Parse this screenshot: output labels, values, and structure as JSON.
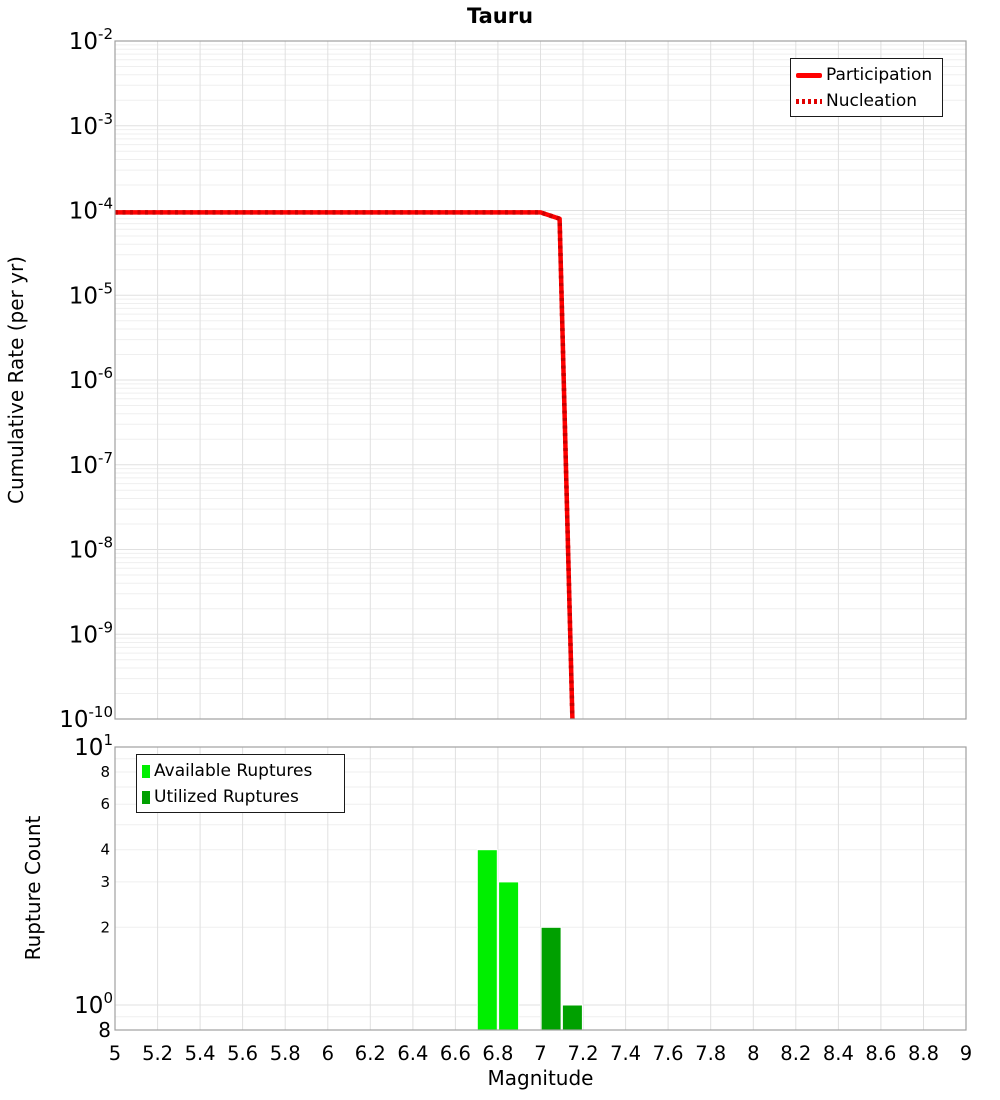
{
  "title": "Tauru",
  "colors": {
    "participation": "#ff0000",
    "nucleation": "#cc0000",
    "available": "#00ef00",
    "utilized": "#00a000",
    "grid_major": "#e0e0e0",
    "grid_minor": "#efefef",
    "plot_border": "#a0a0a0",
    "text": "#000000"
  },
  "chart_data": [
    {
      "type": "line",
      "title": "Tauru",
      "xlabel": "",
      "ylabel": "Cumulative Rate (per yr)",
      "xscale": "linear",
      "yscale": "log",
      "xlim": [
        5,
        9
      ],
      "ylim": [
        1e-10,
        0.01
      ],
      "grid": true,
      "legend_position": "top-right",
      "series": [
        {
          "name": "Participation",
          "style": "solid",
          "color": "#ff0000",
          "points": [
            [
              5.0,
              9.5e-05
            ],
            [
              7.0,
              9.5e-05
            ],
            [
              7.09,
              8e-05
            ],
            [
              7.15,
              1e-10
            ]
          ]
        },
        {
          "name": "Nucleation",
          "style": "dotted",
          "color": "#cc0000",
          "points": [
            [
              5.0,
              9.5e-05
            ],
            [
              7.0,
              9.5e-05
            ],
            [
              7.09,
              8e-05
            ],
            [
              7.15,
              1e-10
            ]
          ]
        }
      ],
      "yticks": [
        {
          "v": 0.01,
          "exp": "-2"
        },
        {
          "v": 0.001,
          "exp": "-3"
        },
        {
          "v": 0.0001,
          "exp": "-4"
        },
        {
          "v": 1e-05,
          "exp": "-5"
        },
        {
          "v": 1e-06,
          "exp": "-6"
        },
        {
          "v": 1e-07,
          "exp": "-7"
        },
        {
          "v": 1e-08,
          "exp": "-8"
        },
        {
          "v": 1e-09,
          "exp": "-9"
        },
        {
          "v": 1e-10,
          "exp": "-10"
        }
      ]
    },
    {
      "type": "bar",
      "title": "",
      "xlabel": "Magnitude",
      "ylabel": "Rupture Count",
      "xscale": "linear",
      "yscale": "log",
      "xlim": [
        5,
        9
      ],
      "ylim": [
        0.8,
        10
      ],
      "grid": true,
      "legend_position": "top-left",
      "bar_width": 0.094,
      "series": [
        {
          "name": "Available Ruptures",
          "color": "#00ef00",
          "bars": [
            {
              "x": 6.75,
              "count": 4
            },
            {
              "x": 6.85,
              "count": 3
            }
          ]
        },
        {
          "name": "Utilized Ruptures",
          "color": "#00a000",
          "bars": [
            {
              "x": 7.05,
              "count": 2
            },
            {
              "x": 7.15,
              "count": 1
            }
          ]
        }
      ],
      "yticks_major": [
        {
          "v": 10,
          "exp": "1"
        },
        {
          "v": 1,
          "exp": "0"
        }
      ],
      "yticks_minor": [
        {
          "v": 8,
          "label": "8"
        },
        {
          "v": 6,
          "label": "6"
        },
        {
          "v": 4,
          "label": "4"
        },
        {
          "v": 3,
          "label": "3"
        },
        {
          "v": 2,
          "label": "2"
        }
      ],
      "ytick_edge": {
        "v": 0.8,
        "label": "8"
      },
      "xticks": [
        {
          "v": 5,
          "label": "5"
        },
        {
          "v": 5.2,
          "label": "5.2"
        },
        {
          "v": 5.4,
          "label": "5.4"
        },
        {
          "v": 5.6,
          "label": "5.6"
        },
        {
          "v": 5.8,
          "label": "5.8"
        },
        {
          "v": 6,
          "label": "6"
        },
        {
          "v": 6.2,
          "label": "6.2"
        },
        {
          "v": 6.4,
          "label": "6.4"
        },
        {
          "v": 6.6,
          "label": "6.6"
        },
        {
          "v": 6.8,
          "label": "6.8"
        },
        {
          "v": 7,
          "label": "7"
        },
        {
          "v": 7.2,
          "label": "7.2"
        },
        {
          "v": 7.4,
          "label": "7.4"
        },
        {
          "v": 7.6,
          "label": "7.6"
        },
        {
          "v": 7.8,
          "label": "7.8"
        },
        {
          "v": 8,
          "label": "8"
        },
        {
          "v": 8.2,
          "label": "8.2"
        },
        {
          "v": 8.4,
          "label": "8.4"
        },
        {
          "v": 8.6,
          "label": "8.6"
        },
        {
          "v": 8.8,
          "label": "8.8"
        },
        {
          "v": 9,
          "label": "9"
        }
      ]
    }
  ]
}
